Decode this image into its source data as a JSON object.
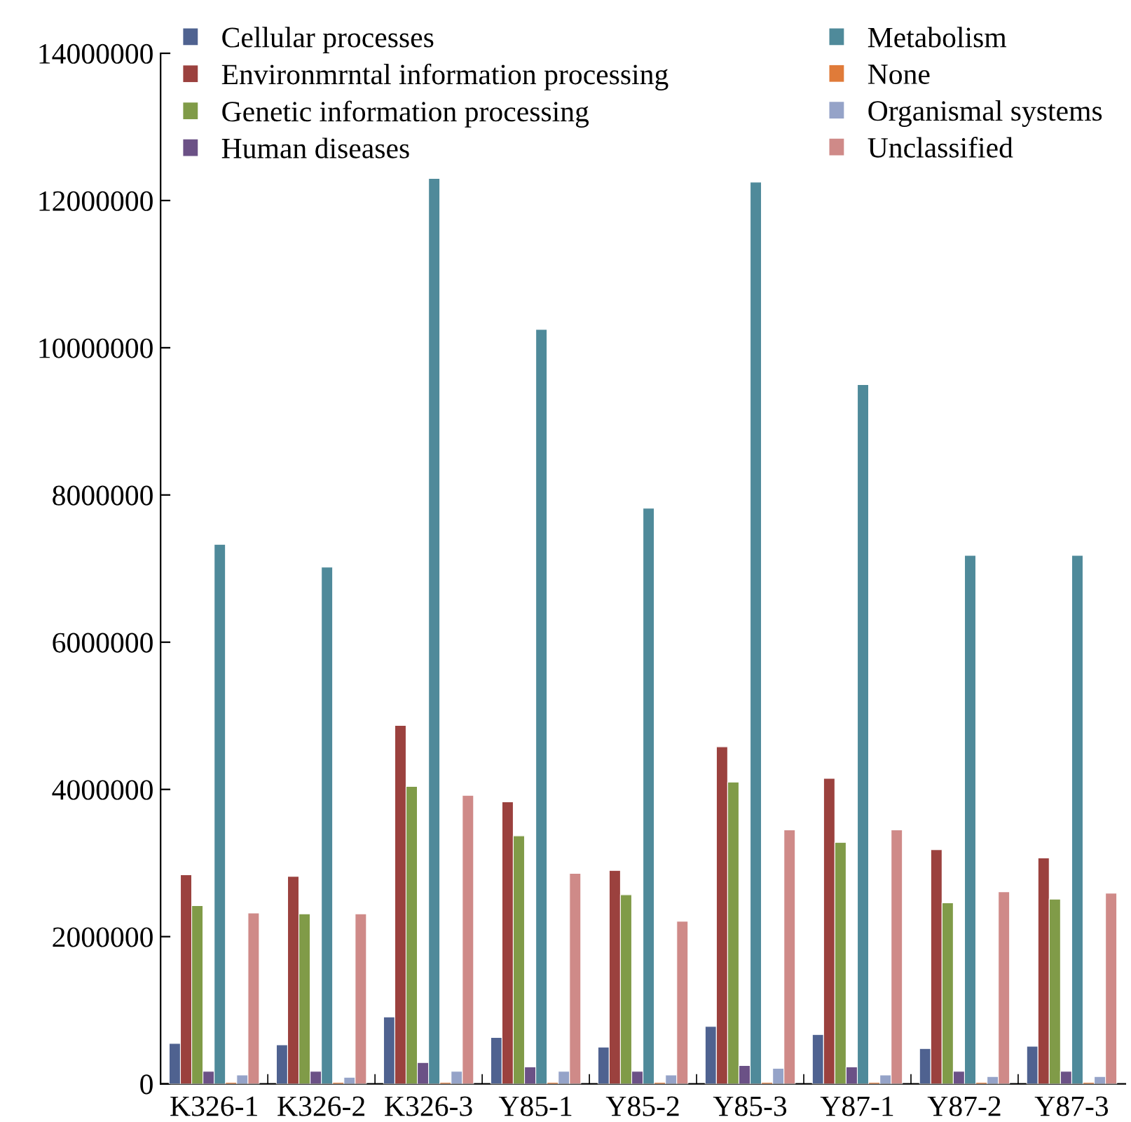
{
  "chart_data": {
    "type": "bar",
    "categories": [
      "K326-1",
      "K326-2",
      "K326-3",
      "Y85-1",
      "Y85-2",
      "Y85-3",
      "Y87-1",
      "Y87-2",
      "Y87-3"
    ],
    "series": [
      {
        "name": "Cellular processes",
        "color": "#4f6290",
        "values": [
          550000,
          530000,
          910000,
          630000,
          500000,
          780000,
          670000,
          480000,
          510000
        ]
      },
      {
        "name": "Environmrntal information processing",
        "color": "#9b413e",
        "values": [
          2840000,
          2820000,
          4870000,
          3830000,
          2900000,
          4580000,
          4150000,
          3180000,
          3070000
        ]
      },
      {
        "name": "Genetic information processing",
        "color": "#809b48",
        "values": [
          2420000,
          2310000,
          4040000,
          3370000,
          2570000,
          4100000,
          3280000,
          2460000,
          2510000
        ]
      },
      {
        "name": "Human diseases",
        "color": "#6b5186",
        "values": [
          170000,
          170000,
          290000,
          230000,
          170000,
          250000,
          230000,
          170000,
          170000
        ]
      },
      {
        "name": "Metabolism",
        "color": "#4f8a9a",
        "values": [
          7330000,
          7020000,
          12300000,
          10250000,
          7820000,
          12250000,
          9500000,
          7180000,
          7180000
        ]
      },
      {
        "name": "None",
        "color": "#e07b39",
        "values": [
          20000,
          20000,
          20000,
          20000,
          20000,
          20000,
          20000,
          20000,
          20000
        ]
      },
      {
        "name": "Organismal systems",
        "color": "#95a3c8",
        "values": [
          120000,
          90000,
          170000,
          170000,
          120000,
          210000,
          120000,
          100000,
          100000
        ]
      },
      {
        "name": "Unclassified",
        "color": "#cf8a88",
        "values": [
          2320000,
          2310000,
          3920000,
          2860000,
          2210000,
          3450000,
          3450000,
          2610000,
          2590000
        ]
      }
    ],
    "ylim": [
      0,
      14000000
    ],
    "yticks": [
      0,
      2000000,
      4000000,
      6000000,
      8000000,
      10000000,
      12000000,
      14000000
    ],
    "grid": false,
    "legend": "top"
  }
}
